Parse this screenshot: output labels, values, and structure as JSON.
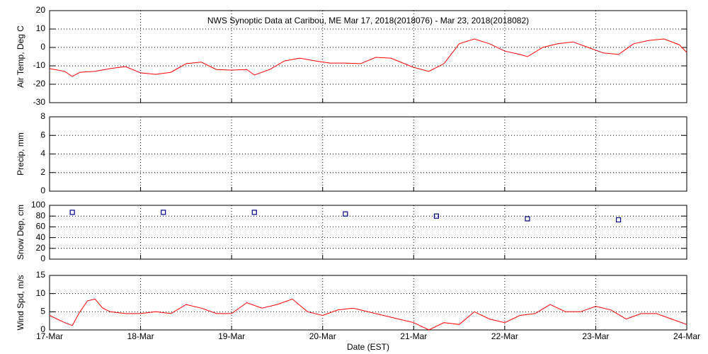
{
  "chart_data": [
    {
      "type": "line",
      "title": "NWS Synoptic Data at Caribou, ME   Mar 17, 2018(2018076) - Mar 23, 2018(2018082)",
      "y_label": "Air Temp, Deg C",
      "color": "#ff0000",
      "grid": true,
      "xlim": [
        0,
        168
      ],
      "ylim": [
        -30,
        20
      ],
      "yticks": [
        -30,
        -20,
        -10,
        0,
        10,
        20
      ],
      "x": [
        0,
        4,
        6,
        8,
        12,
        16,
        20,
        24,
        28,
        32,
        36,
        40,
        44,
        48,
        52,
        54,
        58,
        62,
        66,
        70,
        74,
        78,
        82,
        86,
        90,
        94,
        96,
        100,
        104,
        108,
        112,
        116,
        120,
        124,
        126,
        130,
        134,
        138,
        142,
        146,
        150,
        154,
        158,
        162,
        166,
        168
      ],
      "values": [
        -11.5,
        -13,
        -15.8,
        -13.5,
        -13,
        -11.5,
        -10.4,
        -13.8,
        -14.6,
        -13.5,
        -8.8,
        -8,
        -12,
        -12.3,
        -12,
        -15,
        -12,
        -7.3,
        -5.8,
        -7.3,
        -8.5,
        -8.5,
        -8.8,
        -5.4,
        -5.8,
        -9.2,
        -10.8,
        -13,
        -8.8,
        2,
        4.6,
        2,
        -2,
        -3.8,
        -5,
        0,
        2,
        3,
        0,
        -3,
        -3.8,
        2,
        3.8,
        4.6,
        1.5,
        -2.7
      ]
    },
    {
      "type": "line",
      "y_label": "Precip, mm",
      "color": "#ff0000",
      "grid": true,
      "xlim": [
        0,
        168
      ],
      "ylim": [
        0,
        8
      ],
      "yticks": [
        0,
        2,
        4,
        6,
        8
      ],
      "x": [],
      "values": []
    },
    {
      "type": "scatter",
      "y_label": "Snow Dep, cm",
      "color": "#00008b",
      "grid": true,
      "xlim": [
        0,
        168
      ],
      "ylim": [
        0,
        100
      ],
      "yticks": [
        0,
        20,
        40,
        60,
        80,
        100
      ],
      "x": [
        6,
        30,
        54,
        78,
        102,
        126,
        150
      ],
      "values": [
        87,
        87,
        87,
        84,
        80,
        75,
        73
      ]
    },
    {
      "type": "line",
      "y_label": "Wind Spd, m/s",
      "x_label": "Date (EST)",
      "color": "#ff0000",
      "grid": true,
      "xlim": [
        0,
        168
      ],
      "ylim": [
        0,
        15
      ],
      "yticks": [
        0,
        5,
        10,
        15
      ],
      "xticks": [
        {
          "value": 0,
          "label": "17-Mar"
        },
        {
          "value": 24,
          "label": "18-Mar"
        },
        {
          "value": 48,
          "label": "19-Mar"
        },
        {
          "value": 72,
          "label": "20-Mar"
        },
        {
          "value": 96,
          "label": "21-Mar"
        },
        {
          "value": 120,
          "label": "22-Mar"
        },
        {
          "value": 144,
          "label": "23-Mar"
        },
        {
          "value": 168,
          "label": "24-Mar"
        }
      ],
      "x": [
        0,
        4,
        6,
        8,
        10,
        12,
        14,
        16,
        20,
        24,
        28,
        32,
        36,
        40,
        44,
        48,
        52,
        56,
        60,
        64,
        68,
        72,
        76,
        80,
        84,
        88,
        92,
        96,
        100,
        104,
        108,
        112,
        116,
        120,
        124,
        128,
        132,
        136,
        140,
        144,
        148,
        152,
        156,
        160,
        164,
        168
      ],
      "values": [
        4,
        2,
        1.2,
        5,
        8,
        8.5,
        6,
        5,
        4.5,
        4.5,
        5,
        4.5,
        7,
        6,
        4.5,
        4.5,
        7.5,
        6,
        7,
        8.5,
        5,
        4,
        5.5,
        6,
        5,
        4,
        3,
        2,
        0,
        2,
        1.5,
        5,
        3,
        2,
        4,
        4.5,
        7,
        5,
        5,
        6.5,
        5.5,
        3,
        4.5,
        4.5,
        3,
        1.5
      ]
    }
  ]
}
